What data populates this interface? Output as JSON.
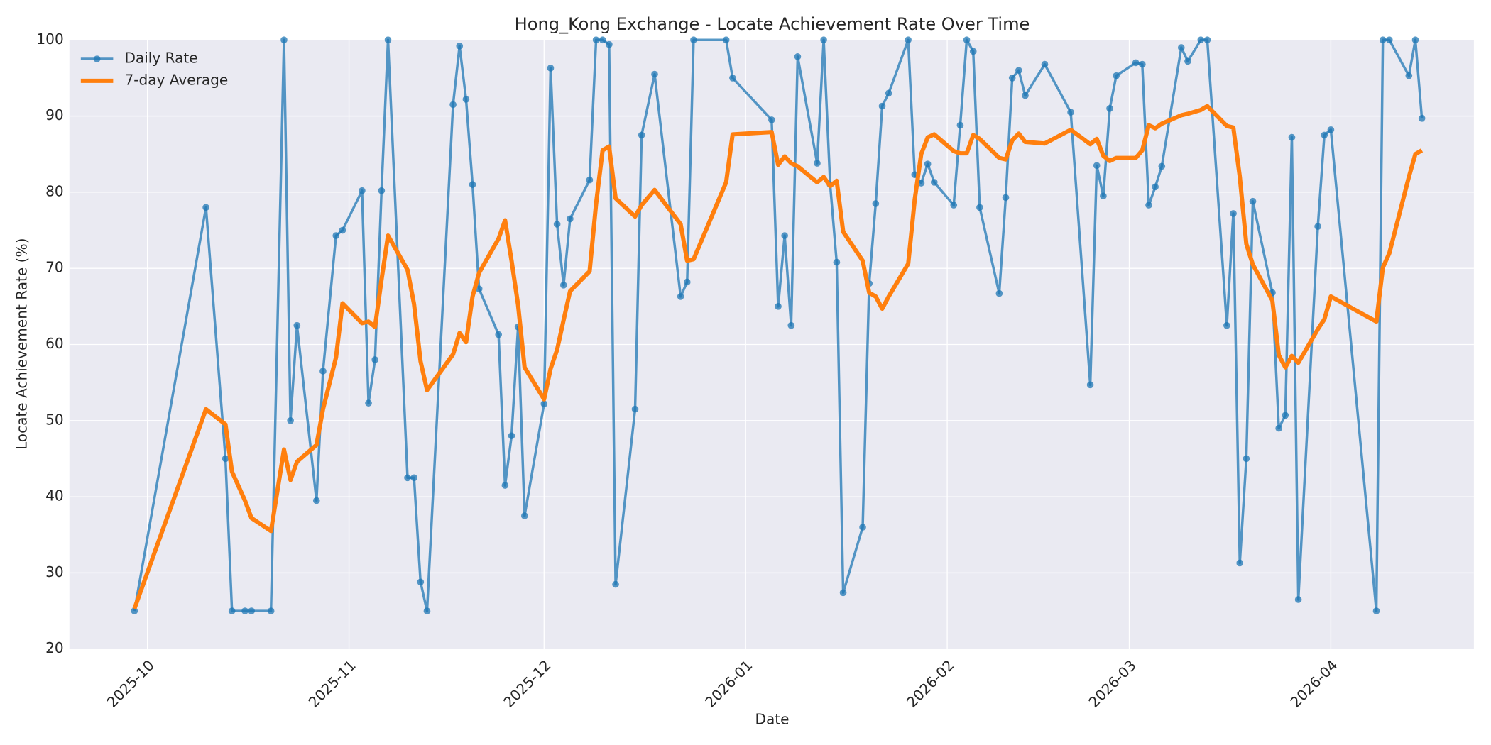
{
  "chart_data": {
    "type": "line",
    "title": "Hong_Kong Exchange - Locate Achievement Rate Over Time",
    "x_label": "Date",
    "y_label": "Locate Achievement Rate (%)",
    "x": [
      "2025-09-29",
      "2025-10-10",
      "2025-10-13",
      "2025-10-14",
      "2025-10-16",
      "2025-10-17",
      "2025-10-20",
      "2025-10-22",
      "2025-10-23",
      "2025-10-24",
      "2025-10-27",
      "2025-10-28",
      "2025-10-30",
      "2025-10-31",
      "2025-11-03",
      "2025-11-04",
      "2025-11-05",
      "2025-11-06",
      "2025-11-07",
      "2025-11-10",
      "2025-11-11",
      "2025-11-12",
      "2025-11-13",
      "2025-11-17",
      "2025-11-18",
      "2025-11-19",
      "2025-11-20",
      "2025-11-21",
      "2025-11-24",
      "2025-11-25",
      "2025-11-26",
      "2025-11-27",
      "2025-11-28",
      "2025-12-01",
      "2025-12-02",
      "2025-12-03",
      "2025-12-04",
      "2025-12-05",
      "2025-12-08",
      "2025-12-09",
      "2025-12-10",
      "2025-12-11",
      "2025-12-12",
      "2025-12-15",
      "2025-12-16",
      "2025-12-18",
      "2025-12-22",
      "2025-12-23",
      "2025-12-24",
      "2025-12-29",
      "2025-12-30",
      "2026-01-05",
      "2026-01-06",
      "2026-01-07",
      "2026-01-08",
      "2026-01-09",
      "2026-01-12",
      "2026-01-13",
      "2026-01-14",
      "2026-01-15",
      "2026-01-16",
      "2026-01-19",
      "2026-01-20",
      "2026-01-21",
      "2026-01-22",
      "2026-01-23",
      "2026-01-26",
      "2026-01-27",
      "2026-01-28",
      "2026-01-29",
      "2026-01-30",
      "2026-02-02",
      "2026-02-03",
      "2026-02-04",
      "2026-02-05",
      "2026-02-06",
      "2026-02-09",
      "2026-02-10",
      "2026-02-11",
      "2026-02-12",
      "2026-02-13",
      "2026-02-16",
      "2026-02-20",
      "2026-02-23",
      "2026-02-24",
      "2026-02-25",
      "2026-02-26",
      "2026-02-27",
      "2026-03-02",
      "2026-03-03",
      "2026-03-04",
      "2026-03-05",
      "2026-03-06",
      "2026-03-09",
      "2026-03-10",
      "2026-03-12",
      "2026-03-13",
      "2026-03-16",
      "2026-03-17",
      "2026-03-18",
      "2026-03-19",
      "2026-03-20",
      "2026-03-23",
      "2026-03-24",
      "2026-03-25",
      "2026-03-26",
      "2026-03-27",
      "2026-03-30",
      "2026-03-31",
      "2026-04-01",
      "2026-04-08",
      "2026-04-09",
      "2026-04-10",
      "2026-04-13",
      "2026-04-14",
      "2026-04-15"
    ],
    "series": [
      {
        "name": "Daily Rate",
        "color": "#1f77b4",
        "markers": true,
        "values": [
          25,
          78,
          45,
          25,
          25,
          25,
          25,
          100,
          50,
          62.5,
          39.5,
          56.5,
          74.3,
          75,
          80.2,
          52.3,
          58,
          80.2,
          100,
          42.5,
          42.5,
          28.8,
          25,
          91.5,
          99.2,
          92.2,
          81,
          67.3,
          61.3,
          41.5,
          48,
          62.3,
          37.5,
          52.2,
          96.3,
          75.8,
          67.8,
          76.5,
          81.6,
          100,
          100,
          99.4,
          28.5,
          51.5,
          87.5,
          95.5,
          66.3,
          68.2,
          100,
          100,
          95,
          89.5,
          65,
          74.3,
          62.5,
          97.8,
          83.8,
          100,
          81,
          70.8,
          27.4,
          36,
          68,
          78.5,
          91.3,
          93,
          100,
          82.3,
          81.2,
          83.7,
          81.3,
          78.3,
          88.8,
          100,
          98.5,
          78,
          66.7,
          79.3,
          95,
          96,
          92.7,
          96.8,
          90.5,
          54.7,
          83.5,
          79.5,
          91,
          95.3,
          97,
          96.8,
          78.3,
          80.7,
          83.4,
          99,
          97.2,
          100,
          100,
          62.5,
          77.2,
          31.3,
          45,
          78.8,
          66.8,
          49,
          50.7,
          87.2,
          26.5,
          75.5,
          87.5,
          88.2,
          25,
          100,
          100,
          95.3,
          100,
          89.7
        ]
      },
      {
        "name": "7-day Average",
        "color": "#ff7f0e",
        "markers": false,
        "values": [
          25.3,
          51.5,
          49.5,
          43.3,
          39.5,
          37.2,
          35.5,
          46.2,
          42.2,
          44.6,
          46.8,
          51.5,
          58.3,
          65.4,
          62.8,
          63,
          62.3,
          68.5,
          74.3,
          69.8,
          65.3,
          57.8,
          54,
          58.7,
          61.5,
          60.3,
          66.3,
          69.4,
          73.9,
          76.3,
          71,
          65.2,
          57,
          52.8,
          56.8,
          59.3,
          63.2,
          67,
          69.6,
          78.5,
          85.5,
          86,
          79.2,
          76.8,
          78.3,
          80.3,
          75.8,
          71,
          71.2,
          81.3,
          87.6,
          87.9,
          83.6,
          84.7,
          83.8,
          83.4,
          81.3,
          82,
          80.8,
          81.5,
          74.8,
          71,
          66.8,
          66.3,
          64.7,
          66.3,
          70.6,
          79,
          85,
          87.2,
          87.6,
          85.4,
          85.1,
          85.1,
          87.5,
          87,
          84.5,
          84.3,
          86.8,
          87.7,
          86.6,
          86.4,
          88.2,
          86.3,
          87,
          84.8,
          84.1,
          84.5,
          84.5,
          85.5,
          88.8,
          88.4,
          89,
          90.1,
          90.3,
          90.8,
          91.3,
          88.7,
          88.5,
          82,
          73.2,
          70.5,
          65.8,
          58.6,
          57,
          58.5,
          57.6,
          62,
          63.3,
          66.3,
          63,
          70.1,
          72,
          82,
          85,
          85.5
        ]
      }
    ],
    "xlim": [
      "2025-09-19",
      "2026-04-23"
    ],
    "xticks": [
      {
        "value": "2025-10-01",
        "label": "2025-10"
      },
      {
        "value": "2025-11-01",
        "label": "2025-11"
      },
      {
        "value": "2025-12-01",
        "label": "2025-12"
      },
      {
        "value": "2026-01-01",
        "label": "2026-01"
      },
      {
        "value": "2026-02-01",
        "label": "2026-02"
      },
      {
        "value": "2026-03-01",
        "label": "2026-03"
      },
      {
        "value": "2026-04-01",
        "label": "2026-04"
      }
    ],
    "ylim": [
      20,
      100
    ],
    "yticks": [
      20,
      30,
      40,
      50,
      60,
      70,
      80,
      90,
      100
    ],
    "grid": true,
    "legend": "upper left"
  }
}
